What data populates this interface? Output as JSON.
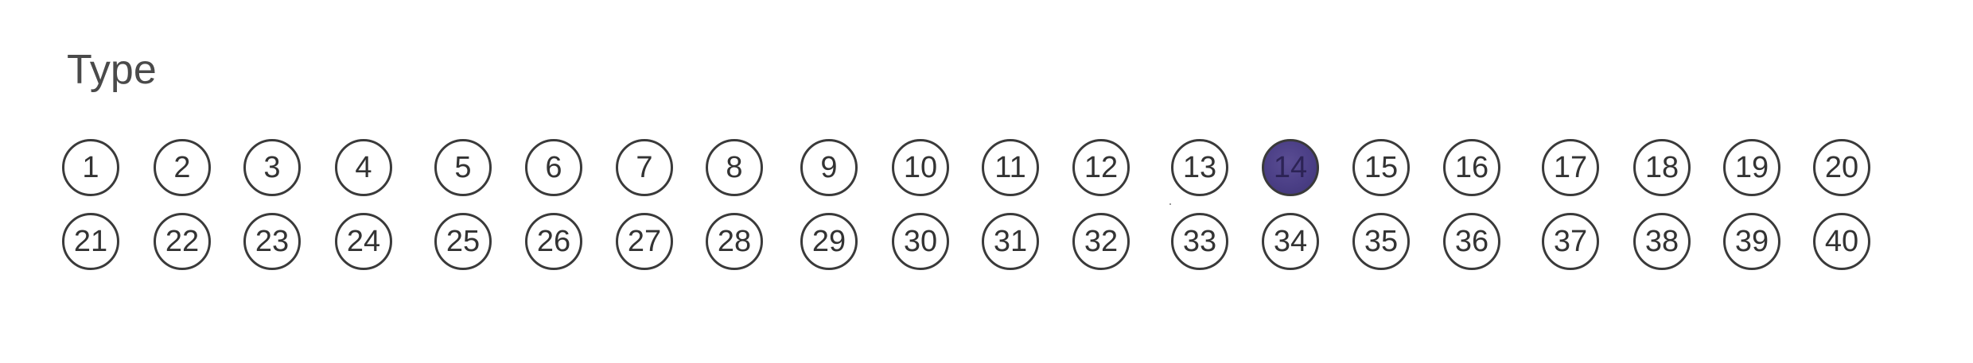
{
  "section": {
    "title": "Type"
  },
  "selected": 14,
  "colors": {
    "filled_mark": "#4b3f86",
    "circle_outline": "#3a3a3a",
    "text": "#333333"
  },
  "rows": [
    [
      "1",
      "2",
      "3",
      "4",
      "5",
      "6",
      "7",
      "8",
      "9",
      "10",
      "11",
      "12",
      "13",
      "14",
      "15",
      "16",
      "17",
      "18",
      "19",
      "20"
    ],
    [
      "21",
      "22",
      "23",
      "24",
      "25",
      "26",
      "27",
      "28",
      "29",
      "30",
      "31",
      "32",
      "33",
      "34",
      "35",
      "36",
      "37",
      "38",
      "39",
      "40"
    ]
  ]
}
